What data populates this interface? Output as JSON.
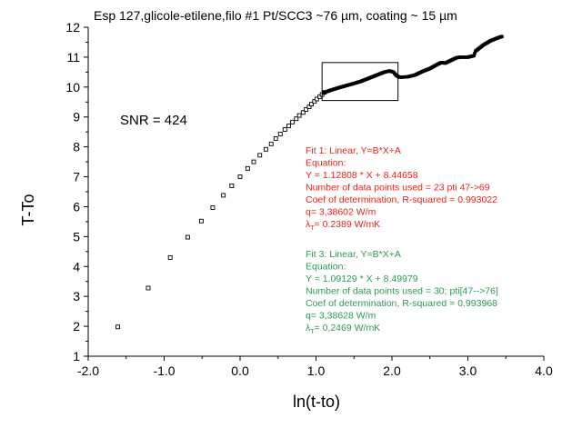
{
  "chart_data": {
    "type": "scatter",
    "title": "Esp 127,glicole-etilene,filo #1 Pt/SCC3 ~76 µm, coating ~ 15 µm",
    "xlabel": "ln(t-to)",
    "ylabel": "T-To",
    "xlim": [
      -2.0,
      4.0
    ],
    "ylim": [
      1,
      12
    ],
    "xticks": [
      "-2.0",
      "-1.0",
      "0.0",
      "1.0",
      "2.0",
      "3.0",
      "4.0"
    ],
    "yticks": [
      "1",
      "2",
      "3",
      "4",
      "5",
      "6",
      "7",
      "8",
      "9",
      "10",
      "11",
      "12"
    ],
    "grid": false,
    "sparse_points": [
      [
        -1.61,
        1.98
      ],
      [
        -1.21,
        3.28
      ],
      [
        -0.92,
        4.3
      ],
      [
        -0.69,
        4.98
      ],
      [
        -0.51,
        5.52
      ],
      [
        -0.36,
        5.97
      ],
      [
        -0.22,
        6.38
      ],
      [
        -0.11,
        6.7
      ],
      [
        0.0,
        7.0
      ],
      [
        0.1,
        7.28
      ],
      [
        0.18,
        7.5
      ],
      [
        0.26,
        7.72
      ],
      [
        0.34,
        7.92
      ],
      [
        0.41,
        8.1
      ],
      [
        0.47,
        8.28
      ],
      [
        0.53,
        8.43
      ],
      [
        0.59,
        8.58
      ],
      [
        0.64,
        8.7
      ],
      [
        0.69,
        8.83
      ],
      [
        0.74,
        8.94
      ],
      [
        0.78,
        9.05
      ],
      [
        0.83,
        9.15
      ],
      [
        0.87,
        9.25
      ],
      [
        0.91,
        9.34
      ],
      [
        0.94,
        9.43
      ],
      [
        0.98,
        9.52
      ],
      [
        1.01,
        9.6
      ],
      [
        1.05,
        9.68
      ],
      [
        1.08,
        9.75
      ],
      [
        1.11,
        9.82
      ]
    ],
    "dense_series": [
      [
        1.11,
        9.82
      ],
      [
        1.2,
        9.9
      ],
      [
        1.3,
        9.98
      ],
      [
        1.4,
        10.05
      ],
      [
        1.5,
        10.12
      ],
      [
        1.6,
        10.2
      ],
      [
        1.7,
        10.3
      ],
      [
        1.8,
        10.4
      ],
      [
        1.9,
        10.5
      ],
      [
        1.97,
        10.54
      ],
      [
        2.02,
        10.5
      ],
      [
        2.06,
        10.38
      ],
      [
        2.1,
        10.33
      ],
      [
        2.2,
        10.34
      ],
      [
        2.3,
        10.4
      ],
      [
        2.4,
        10.52
      ],
      [
        2.5,
        10.62
      ],
      [
        2.6,
        10.76
      ],
      [
        2.65,
        10.82
      ],
      [
        2.7,
        10.8
      ],
      [
        2.75,
        10.86
      ],
      [
        2.8,
        10.92
      ],
      [
        2.85,
        10.98
      ],
      [
        2.9,
        11.0
      ],
      [
        3.0,
        11.0
      ],
      [
        3.08,
        11.05
      ],
      [
        3.1,
        11.2
      ],
      [
        3.2,
        11.4
      ],
      [
        3.3,
        11.55
      ],
      [
        3.4,
        11.65
      ],
      [
        3.46,
        11.7
      ]
    ],
    "zoom_box": {
      "x": [
        1.08,
        2.08
      ],
      "y": [
        9.55,
        10.82
      ]
    },
    "annotations": {
      "snr": "SNR = 424",
      "fit1": {
        "color": "#e8231c",
        "lines": [
          "Fit 1:  Linear, Y=B*X+A",
          "Equation:",
          "Y = 1.12808 * X + 8.44658",
          "Number of data points used = 23 pti 47->69",
          "Coef of determination, R-squared = 0.993022",
          "q=  3,38602 W/m",
          "λT= 0.2389 W/mK"
        ]
      },
      "fit3": {
        "color": "#2e9a55",
        "lines": [
          "Fit 3:  Linear, Y=B*X+A",
          "Equation:",
          "Y = 1.09129 * X + 8.49979",
          "Number of data points used = 30; pti[47-->76]",
          "Coef of determination, R-squared = 0.993968",
          "q=  3,38628  W/m",
          "λT= 0,2469 W/mK"
        ]
      }
    }
  }
}
